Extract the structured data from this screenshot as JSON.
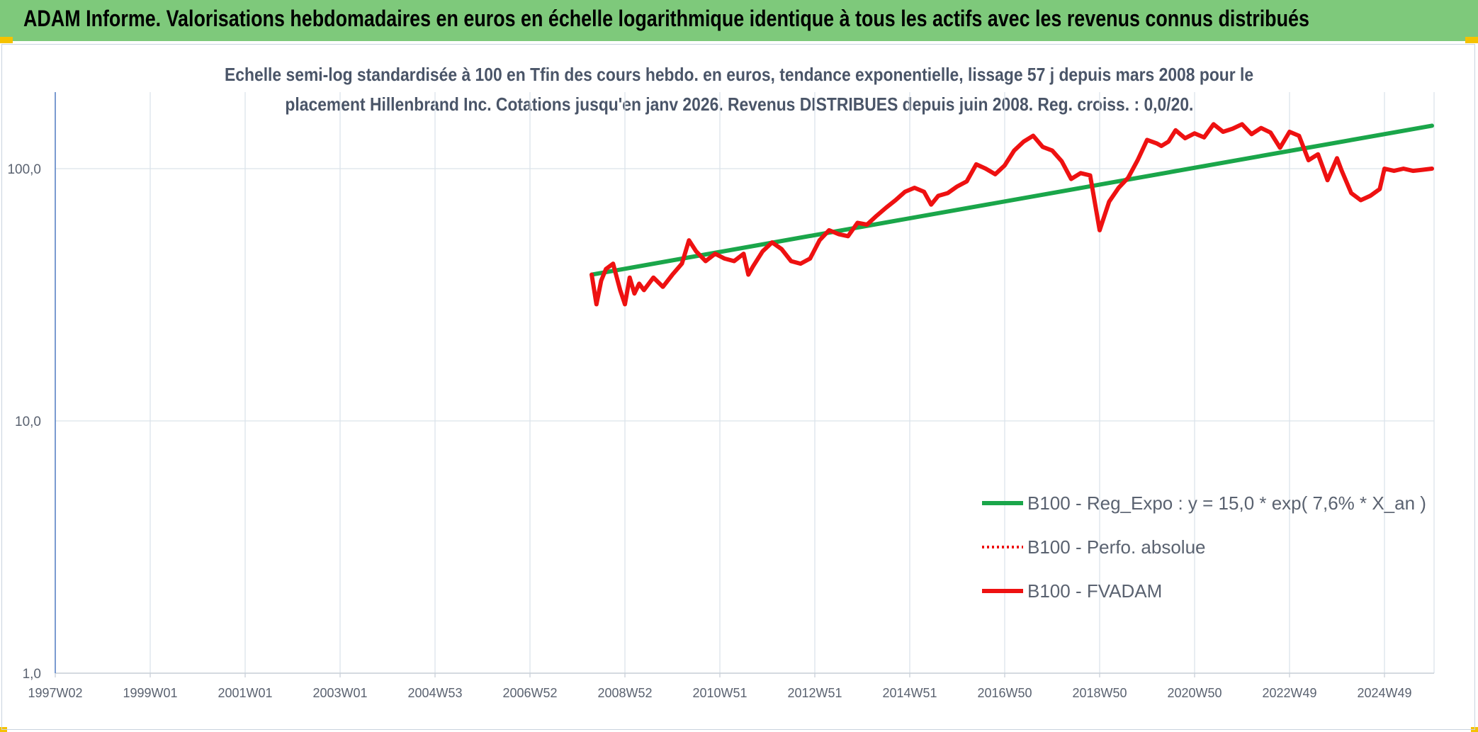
{
  "header": {
    "title": "ADAM Informe. Valorisations hebdomadaires en euros en échelle logarithmique identique à tous les actifs avec les revenus connus distribués",
    "accent": "#7ec97b",
    "corner_color": "#f5c200"
  },
  "chart_data": {
    "type": "line",
    "subtitle_line1": "Echelle semi-log standardisée à 100 en Tfin des cours hebdo. en euros, tendance exponentielle, lissage 57 j depuis mars 2008 pour le",
    "subtitle_line2": "placement Hillenbrand Inc. Cotations jusqu'en janv 2026. Revenus DISTRIBUES depuis juin 2008. Reg. croiss. : 0,0/20.",
    "y_scale": "log",
    "ylim": [
      1,
      180
    ],
    "y_ticks": [
      {
        "value": 1,
        "label": "1,0"
      },
      {
        "value": 10,
        "label": "10,0"
      },
      {
        "value": 100,
        "label": "100,0"
      }
    ],
    "xlim": [
      1997.0,
      2026.1
    ],
    "x_ticks": [
      {
        "label": "1997W02",
        "x": 1997.0
      },
      {
        "label": "1999W01",
        "x": 1999.0
      },
      {
        "label": "2001W01",
        "x": 2001.0
      },
      {
        "label": "2003W01",
        "x": 2003.0
      },
      {
        "label": "2004W53",
        "x": 2005.0
      },
      {
        "label": "2006W52",
        "x": 2007.0
      },
      {
        "label": "2008W52",
        "x": 2009.0
      },
      {
        "label": "2010W51",
        "x": 2011.0
      },
      {
        "label": "2012W51",
        "x": 2013.0
      },
      {
        "label": "2014W51",
        "x": 2015.0
      },
      {
        "label": "2016W50",
        "x": 2017.0
      },
      {
        "label": "2018W50",
        "x": 2019.0
      },
      {
        "label": "2020W50",
        "x": 2021.0
      },
      {
        "label": "2022W49",
        "x": 2023.0
      },
      {
        "label": "2024W49",
        "x": 2025.0
      }
    ],
    "grid": true,
    "legend_position": "bottom-right",
    "series": [
      {
        "name": "B100 - Reg_Expo : y = 15,0 * exp( 7,6% *  X_an )",
        "color": "#1aa64a",
        "style": "solid",
        "x": [
          2008.3,
          2026.0
        ],
        "y": [
          38,
          148
        ]
      },
      {
        "name": "B100 - Perfo. absolue",
        "color": "#ee1111",
        "style": "dotted",
        "x": [],
        "y": []
      },
      {
        "name": "B100 - FVADAM",
        "color": "#ee1111",
        "style": "solid",
        "x": [
          2008.3,
          2008.4,
          2008.5,
          2008.6,
          2008.75,
          2008.9,
          2009.0,
          2009.1,
          2009.2,
          2009.3,
          2009.4,
          2009.6,
          2009.8,
          2010.0,
          2010.2,
          2010.35,
          2010.5,
          2010.7,
          2010.9,
          2011.1,
          2011.3,
          2011.5,
          2011.6,
          2011.7,
          2011.9,
          2012.1,
          2012.3,
          2012.5,
          2012.7,
          2012.9,
          2013.1,
          2013.3,
          2013.5,
          2013.7,
          2013.9,
          2014.1,
          2014.3,
          2014.5,
          2014.7,
          2014.9,
          2015.1,
          2015.3,
          2015.45,
          2015.6,
          2015.8,
          2016.0,
          2016.2,
          2016.4,
          2016.6,
          2016.8,
          2017.0,
          2017.2,
          2017.4,
          2017.6,
          2017.8,
          2018.0,
          2018.2,
          2018.4,
          2018.6,
          2018.8,
          2019.0,
          2019.2,
          2019.4,
          2019.6,
          2019.8,
          2020.0,
          2020.2,
          2020.3,
          2020.45,
          2020.6,
          2020.8,
          2021.0,
          2021.2,
          2021.4,
          2021.6,
          2021.8,
          2022.0,
          2022.2,
          2022.4,
          2022.6,
          2022.8,
          2023.0,
          2023.2,
          2023.4,
          2023.6,
          2023.8,
          2024.0,
          2024.1,
          2024.3,
          2024.5,
          2024.7,
          2024.9,
          2025.0,
          2025.2,
          2025.4,
          2025.6,
          2025.8,
          2026.0
        ],
        "y": [
          38,
          29,
          36,
          40,
          42,
          33,
          29,
          37,
          32,
          35,
          33,
          37,
          34,
          38,
          42,
          52,
          47,
          43,
          46,
          44,
          43,
          46,
          38,
          41,
          47,
          51,
          48,
          43,
          42,
          44,
          52,
          57,
          55,
          54,
          61,
          60,
          65,
          70,
          75,
          81,
          84,
          81,
          72,
          78,
          80,
          85,
          89,
          104,
          100,
          95,
          103,
          118,
          128,
          135,
          122,
          118,
          107,
          91,
          96,
          94,
          57,
          74,
          84,
          92,
          108,
          130,
          126,
          123,
          128,
          142,
          132,
          138,
          133,
          150,
          140,
          144,
          150,
          137,
          145,
          139,
          121,
          140,
          135,
          108,
          114,
          90,
          110,
          98,
          80,
          75,
          78,
          83,
          100,
          98,
          100,
          98,
          99,
          100
        ]
      }
    ]
  }
}
